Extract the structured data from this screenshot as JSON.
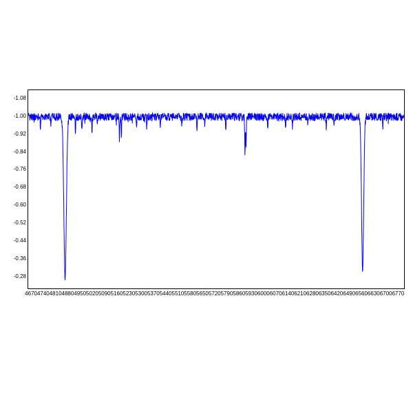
{
  "spectrum": {
    "type": "line",
    "background_color": "#ffffff",
    "border_color": "#000000",
    "line_color": "#0000ff",
    "line_width": 1,
    "tick_font_size": 8,
    "tick_color": "#000000",
    "xlim": [
      4650,
      6800
    ],
    "ylim": [
      0.23,
      1.12
    ],
    "x_ticks": [
      4670,
      4740,
      4810,
      4880,
      4950,
      5020,
      5090,
      5160,
      5230,
      5300,
      5370,
      5440,
      5510,
      5580,
      5650,
      5720,
      5790,
      5860,
      5930,
      6000,
      6070,
      6140,
      6210,
      6280,
      6350,
      6420,
      6490,
      6560,
      6630,
      6700,
      6770
    ],
    "y_ticks": [
      0.28,
      0.36,
      0.44,
      0.52,
      0.6,
      0.68,
      0.76,
      0.84,
      0.92,
      1.0,
      1.08
    ],
    "continuum_level": 1.0,
    "noise_amplitude": 0.018,
    "absorption_lines": [
      {
        "center": 4861,
        "depth": 0.73,
        "width": 14
      },
      {
        "center": 6563,
        "depth": 0.7,
        "width": 12
      },
      {
        "center": 5890,
        "depth": 0.18,
        "width": 3
      },
      {
        "center": 5896,
        "depth": 0.14,
        "width": 3
      },
      {
        "center": 5172,
        "depth": 0.1,
        "width": 3
      },
      {
        "center": 5183,
        "depth": 0.09,
        "width": 3
      },
      {
        "center": 4920,
        "depth": 0.08,
        "width": 3
      },
      {
        "center": 4957,
        "depth": 0.07,
        "width": 3
      },
      {
        "center": 5015,
        "depth": 0.07,
        "width": 3
      },
      {
        "center": 5270,
        "depth": 0.06,
        "width": 3
      },
      {
        "center": 5328,
        "depth": 0.06,
        "width": 3
      },
      {
        "center": 5405,
        "depth": 0.06,
        "width": 3
      },
      {
        "center": 5528,
        "depth": 0.05,
        "width": 3
      },
      {
        "center": 5615,
        "depth": 0.05,
        "width": 3
      },
      {
        "center": 5780,
        "depth": 0.05,
        "width": 3
      },
      {
        "center": 6020,
        "depth": 0.05,
        "width": 3
      },
      {
        "center": 6122,
        "depth": 0.05,
        "width": 3
      },
      {
        "center": 6162,
        "depth": 0.05,
        "width": 3
      },
      {
        "center": 6355,
        "depth": 0.05,
        "width": 3
      },
      {
        "center": 5045,
        "depth": 0.05,
        "width": 3
      },
      {
        "center": 4720,
        "depth": 0.05,
        "width": 3
      },
      {
        "center": 4780,
        "depth": 0.04,
        "width": 3
      },
      {
        "center": 5660,
        "depth": 0.04,
        "width": 3
      },
      {
        "center": 6250,
        "depth": 0.04,
        "width": 3
      },
      {
        "center": 6400,
        "depth": 0.04,
        "width": 3
      },
      {
        "center": 6678,
        "depth": 0.04,
        "width": 3
      }
    ]
  }
}
